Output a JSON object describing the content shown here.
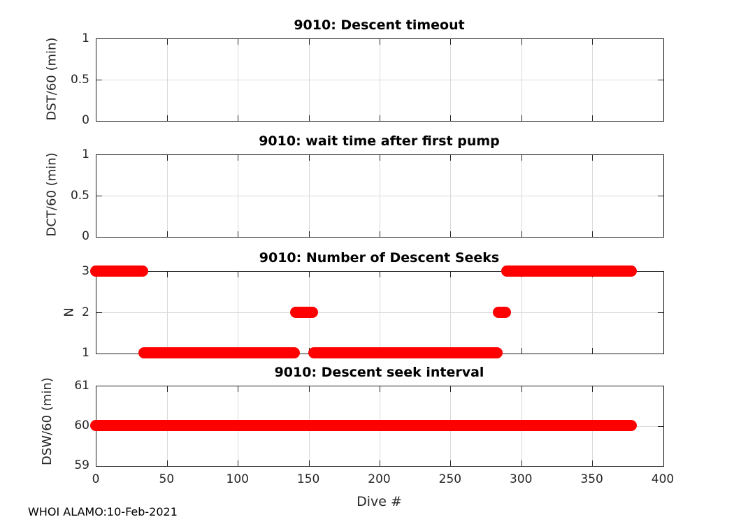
{
  "figure": {
    "footer": "WHOI ALAMO:10-Feb-2021",
    "colors": {
      "accent": "#ff0000",
      "axis": "#1f1f1f",
      "grid": "#d9d9d9",
      "background": "#ffffff"
    }
  },
  "chart_data": [
    {
      "type": "line",
      "title": "9010: Descent timeout",
      "ylabel": "DST/60 (min)",
      "xlabel": "",
      "xlim": [
        0,
        400
      ],
      "ylim": [
        0,
        1
      ],
      "xticks": [
        0,
        50,
        100,
        150,
        200,
        250,
        300,
        350,
        400
      ],
      "yticks": [
        0,
        0.5,
        1
      ],
      "ytick_labels": [
        "0",
        "0.5",
        "1"
      ],
      "grid": true,
      "legend": null,
      "series": []
    },
    {
      "type": "line",
      "title": "9010: wait time after first pump",
      "ylabel": "DCT/60 (min)",
      "xlabel": "",
      "xlim": [
        0,
        400
      ],
      "ylim": [
        0,
        1
      ],
      "xticks": [
        0,
        50,
        100,
        150,
        200,
        250,
        300,
        350,
        400
      ],
      "yticks": [
        0,
        0.5,
        1
      ],
      "ytick_labels": [
        "0",
        "0.5",
        "1"
      ],
      "grid": true,
      "legend": null,
      "series": []
    },
    {
      "type": "line",
      "title": "9010: Number of Descent Seeks",
      "ylabel": "N",
      "xlabel": "",
      "xlim": [
        0,
        400
      ],
      "ylim": [
        1,
        3
      ],
      "xticks": [
        0,
        50,
        100,
        150,
        200,
        250,
        300,
        350,
        400
      ],
      "yticks": [
        1,
        2,
        3
      ],
      "ytick_labels": [
        "1",
        "2",
        "3"
      ],
      "grid": true,
      "legend": null,
      "series": [
        {
          "name": "number-of-descent-seeks",
          "color": "#ff0000",
          "style": "thick-line",
          "segments": [
            {
              "x_start": 0,
              "x_end": 33,
              "y": 3
            },
            {
              "x_start": 34,
              "x_end": 140,
              "y": 1
            },
            {
              "x_start": 141,
              "x_end": 153,
              "y": 2
            },
            {
              "x_start": 154,
              "x_end": 283,
              "y": 1
            },
            {
              "x_start": 284,
              "x_end": 289,
              "y": 2
            },
            {
              "x_start": 290,
              "x_end": 378,
              "y": 3
            }
          ]
        }
      ]
    },
    {
      "type": "line",
      "title": "9010: Descent seek interval",
      "ylabel": "DSW/60 (min)",
      "xlabel": "Dive #",
      "xlim": [
        0,
        400
      ],
      "ylim": [
        59,
        61
      ],
      "xticks": [
        0,
        50,
        100,
        150,
        200,
        250,
        300,
        350,
        400
      ],
      "xtick_labels": [
        "0",
        "50",
        "100",
        "150",
        "200",
        "250",
        "300",
        "350",
        "400"
      ],
      "yticks": [
        59,
        60,
        61
      ],
      "ytick_labels": [
        "59",
        "60",
        "61"
      ],
      "grid": true,
      "legend": null,
      "series": [
        {
          "name": "descent-seek-interval",
          "color": "#ff0000",
          "style": "thick-line",
          "segments": [
            {
              "x_start": 0,
              "x_end": 378,
              "y": 60
            }
          ]
        }
      ]
    }
  ]
}
